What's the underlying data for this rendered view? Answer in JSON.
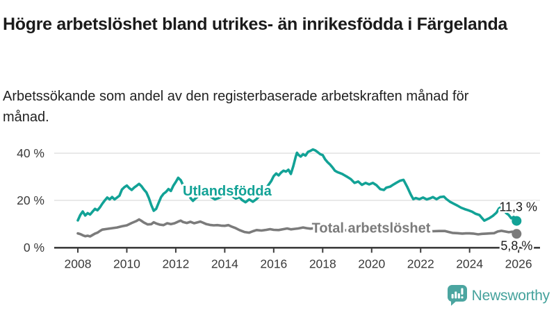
{
  "header": {
    "title": "Högre arbetslöshet bland utrikes- än inrikesfödda i Färgelanda",
    "subtitle": "Arbetssökande som andel av den registerbaserade arbetskraften månad för månad."
  },
  "branding": {
    "name": "Newsworthy",
    "logo_icon": "bar-chart-speech-bubble-icon",
    "color": "#4ba5a0"
  },
  "chart_data": {
    "type": "line",
    "title": "",
    "xlabel": "",
    "ylabel": "",
    "grid": "horizontal",
    "colors": {
      "grid": "#e2e2e2",
      "axis": "#3d3d3d",
      "tick_text": "#3a3a3a"
    },
    "xlim": [
      2007.3,
      2026.9
    ],
    "ylim": [
      0,
      44
    ],
    "x_ticks": [
      {
        "value": 2008,
        "label": "2008"
      },
      {
        "value": 2010,
        "label": "2010"
      },
      {
        "value": 2012,
        "label": "2012"
      },
      {
        "value": 2014,
        "label": "2014"
      },
      {
        "value": 2016,
        "label": "2016"
      },
      {
        "value": 2018,
        "label": "2018"
      },
      {
        "value": 2020,
        "label": "2020"
      },
      {
        "value": 2022,
        "label": "2022"
      },
      {
        "value": 2024,
        "label": "2024"
      },
      {
        "value": 2026,
        "label": "2026"
      }
    ],
    "y_ticks": [
      {
        "value": 0,
        "label": "0 %"
      },
      {
        "value": 20,
        "label": "20 %"
      },
      {
        "value": 40,
        "label": "40 %"
      }
    ],
    "series": [
      {
        "name": "Utlandsfödda",
        "color": "#12a296",
        "end_label": "11,3 %",
        "end_value": 11.3,
        "label_at": [
          2014.1,
          22.1
        ],
        "points": [
          [
            2008.0,
            11.5
          ],
          [
            2008.1,
            13.8
          ],
          [
            2008.2,
            15.3
          ],
          [
            2008.3,
            13.6
          ],
          [
            2008.4,
            14.6
          ],
          [
            2008.5,
            14.0
          ],
          [
            2008.6,
            15.2
          ],
          [
            2008.7,
            16.4
          ],
          [
            2008.8,
            15.8
          ],
          [
            2008.9,
            17.0
          ],
          [
            2009.0,
            18.6
          ],
          [
            2009.1,
            20.0
          ],
          [
            2009.2,
            21.2
          ],
          [
            2009.3,
            20.4
          ],
          [
            2009.4,
            21.4
          ],
          [
            2009.5,
            20.4
          ],
          [
            2009.6,
            21.2
          ],
          [
            2009.7,
            22.0
          ],
          [
            2009.8,
            24.6
          ],
          [
            2009.9,
            25.6
          ],
          [
            2010.0,
            26.3
          ],
          [
            2010.1,
            25.2
          ],
          [
            2010.2,
            24.4
          ],
          [
            2010.3,
            25.4
          ],
          [
            2010.4,
            26.2
          ],
          [
            2010.5,
            27.0
          ],
          [
            2010.6,
            26.0
          ],
          [
            2010.7,
            24.6
          ],
          [
            2010.8,
            23.4
          ],
          [
            2010.9,
            21.0
          ],
          [
            2011.0,
            18.0
          ],
          [
            2011.1,
            15.6
          ],
          [
            2011.2,
            16.4
          ],
          [
            2011.3,
            19.0
          ],
          [
            2011.4,
            21.4
          ],
          [
            2011.5,
            22.8
          ],
          [
            2011.6,
            23.6
          ],
          [
            2011.7,
            24.8
          ],
          [
            2011.8,
            24.0
          ],
          [
            2011.9,
            26.2
          ],
          [
            2012.0,
            27.8
          ],
          [
            2012.1,
            29.6
          ],
          [
            2012.2,
            28.6
          ],
          [
            2012.3,
            26.4
          ],
          [
            2012.4,
            24.6
          ],
          [
            2012.5,
            22.8
          ],
          [
            2012.6,
            21.0
          ],
          [
            2012.7,
            19.8
          ],
          [
            2012.8,
            20.8
          ],
          [
            2012.9,
            21.6
          ],
          [
            2013.0,
            22.4
          ],
          [
            2013.15,
            23.0
          ],
          [
            2013.3,
            22.2
          ],
          [
            2013.45,
            21.4
          ],
          [
            2013.6,
            20.4
          ],
          [
            2013.75,
            21.0
          ],
          [
            2013.9,
            21.8
          ],
          [
            2014.0,
            22.4
          ],
          [
            2014.15,
            22.8
          ],
          [
            2014.3,
            21.8
          ],
          [
            2014.45,
            20.8
          ],
          [
            2014.6,
            21.4
          ],
          [
            2014.7,
            20.2
          ],
          [
            2014.85,
            19.2
          ],
          [
            2015.0,
            20.4
          ],
          [
            2015.15,
            19.4
          ],
          [
            2015.3,
            20.6
          ],
          [
            2015.45,
            22.2
          ],
          [
            2015.6,
            24.0
          ],
          [
            2015.75,
            26.0
          ],
          [
            2015.9,
            28.2
          ],
          [
            2016.0,
            30.3
          ],
          [
            2016.1,
            31.4
          ],
          [
            2016.2,
            30.6
          ],
          [
            2016.3,
            31.8
          ],
          [
            2016.4,
            32.6
          ],
          [
            2016.5,
            32.2
          ],
          [
            2016.6,
            33.0
          ],
          [
            2016.7,
            31.2
          ],
          [
            2016.8,
            34.5
          ],
          [
            2016.9,
            38.5
          ],
          [
            2016.95,
            40.2
          ],
          [
            2017.0,
            39.4
          ],
          [
            2017.1,
            38.6
          ],
          [
            2017.2,
            39.6
          ],
          [
            2017.3,
            39.0
          ],
          [
            2017.4,
            40.6
          ],
          [
            2017.5,
            41.0
          ],
          [
            2017.6,
            41.6
          ],
          [
            2017.7,
            41.2
          ],
          [
            2017.8,
            40.4
          ],
          [
            2017.9,
            39.6
          ],
          [
            2018.0,
            39.2
          ],
          [
            2018.1,
            37.4
          ],
          [
            2018.2,
            36.2
          ],
          [
            2018.3,
            35.2
          ],
          [
            2018.4,
            34.0
          ],
          [
            2018.5,
            32.6
          ],
          [
            2018.6,
            32.0
          ],
          [
            2018.7,
            31.6
          ],
          [
            2018.8,
            31.2
          ],
          [
            2018.9,
            30.6
          ],
          [
            2019.0,
            30.0
          ],
          [
            2019.15,
            29.0
          ],
          [
            2019.3,
            27.4
          ],
          [
            2019.45,
            28.0
          ],
          [
            2019.6,
            26.6
          ],
          [
            2019.75,
            27.4
          ],
          [
            2019.9,
            26.8
          ],
          [
            2020.05,
            27.4
          ],
          [
            2020.2,
            26.4
          ],
          [
            2020.35,
            24.8
          ],
          [
            2020.5,
            24.4
          ],
          [
            2020.6,
            25.4
          ],
          [
            2020.75,
            25.8
          ],
          [
            2020.9,
            26.8
          ],
          [
            2021.0,
            27.4
          ],
          [
            2021.15,
            28.3
          ],
          [
            2021.3,
            28.7
          ],
          [
            2021.45,
            25.8
          ],
          [
            2021.6,
            22.4
          ],
          [
            2021.7,
            20.5
          ],
          [
            2021.8,
            21.0
          ],
          [
            2021.95,
            20.5
          ],
          [
            2022.1,
            21.2
          ],
          [
            2022.25,
            20.4
          ],
          [
            2022.4,
            20.9
          ],
          [
            2022.5,
            21.4
          ],
          [
            2022.65,
            20.5
          ],
          [
            2022.8,
            21.4
          ],
          [
            2022.95,
            21.6
          ],
          [
            2023.05,
            20.6
          ],
          [
            2023.2,
            19.4
          ],
          [
            2023.35,
            18.6
          ],
          [
            2023.5,
            17.8
          ],
          [
            2023.65,
            16.9
          ],
          [
            2023.8,
            16.3
          ],
          [
            2023.95,
            15.8
          ],
          [
            2024.1,
            15.2
          ],
          [
            2024.25,
            14.3
          ],
          [
            2024.4,
            13.8
          ],
          [
            2024.5,
            12.6
          ],
          [
            2024.6,
            11.4
          ],
          [
            2024.7,
            11.9
          ],
          [
            2024.8,
            12.4
          ],
          [
            2024.95,
            13.4
          ],
          [
            2025.1,
            14.8
          ],
          [
            2025.2,
            16.6
          ],
          [
            2025.3,
            17.2
          ],
          [
            2025.4,
            15.8
          ],
          [
            2025.5,
            14.6
          ],
          [
            2025.6,
            13.8
          ],
          [
            2025.7,
            12.4
          ],
          [
            2025.8,
            13.0
          ],
          [
            2025.9,
            11.8
          ],
          [
            2025.92,
            11.3
          ]
        ]
      },
      {
        "name": "Total arbetslöshet",
        "color": "#7b7b7b",
        "end_label": "5,8 %",
        "end_value": 5.8,
        "label_at": [
          2019.98,
          6.3
        ],
        "points": [
          [
            2008.0,
            6.0
          ],
          [
            2008.1,
            5.7
          ],
          [
            2008.2,
            5.2
          ],
          [
            2008.3,
            4.8
          ],
          [
            2008.4,
            5.0
          ],
          [
            2008.5,
            4.7
          ],
          [
            2008.6,
            5.3
          ],
          [
            2008.7,
            5.9
          ],
          [
            2008.8,
            6.3
          ],
          [
            2008.9,
            7.0
          ],
          [
            2009.0,
            7.6
          ],
          [
            2009.2,
            7.9
          ],
          [
            2009.4,
            8.2
          ],
          [
            2009.6,
            8.5
          ],
          [
            2009.8,
            9.0
          ],
          [
            2010.0,
            9.4
          ],
          [
            2010.2,
            10.4
          ],
          [
            2010.4,
            11.3
          ],
          [
            2010.5,
            11.9
          ],
          [
            2010.6,
            11.3
          ],
          [
            2010.7,
            10.6
          ],
          [
            2010.85,
            9.8
          ],
          [
            2011.0,
            9.9
          ],
          [
            2011.1,
            10.7
          ],
          [
            2011.2,
            10.2
          ],
          [
            2011.35,
            9.7
          ],
          [
            2011.5,
            9.5
          ],
          [
            2011.65,
            10.3
          ],
          [
            2011.8,
            9.9
          ],
          [
            2011.95,
            10.3
          ],
          [
            2012.1,
            11.0
          ],
          [
            2012.2,
            11.4
          ],
          [
            2012.3,
            10.8
          ],
          [
            2012.45,
            10.4
          ],
          [
            2012.6,
            10.9
          ],
          [
            2012.75,
            10.3
          ],
          [
            2012.9,
            10.7
          ],
          [
            2013.0,
            11.0
          ],
          [
            2013.1,
            10.6
          ],
          [
            2013.25,
            9.9
          ],
          [
            2013.4,
            9.6
          ],
          [
            2013.55,
            9.4
          ],
          [
            2013.7,
            9.5
          ],
          [
            2013.85,
            9.3
          ],
          [
            2014.0,
            9.2
          ],
          [
            2014.15,
            9.5
          ],
          [
            2014.3,
            8.8
          ],
          [
            2014.45,
            8.2
          ],
          [
            2014.6,
            7.4
          ],
          [
            2014.8,
            6.6
          ],
          [
            2015.0,
            6.3
          ],
          [
            2015.15,
            6.9
          ],
          [
            2015.3,
            7.4
          ],
          [
            2015.5,
            7.2
          ],
          [
            2015.7,
            7.5
          ],
          [
            2015.85,
            7.8
          ],
          [
            2016.0,
            7.5
          ],
          [
            2016.2,
            7.4
          ],
          [
            2016.4,
            7.8
          ],
          [
            2016.55,
            8.1
          ],
          [
            2016.7,
            7.7
          ],
          [
            2016.85,
            7.9
          ],
          [
            2017.0,
            8.1
          ],
          [
            2017.2,
            8.5
          ],
          [
            2017.35,
            8.2
          ],
          [
            2017.5,
            8.0
          ],
          [
            2017.7,
            8.2
          ],
          [
            2017.9,
            8.0
          ],
          [
            2018.1,
            7.8
          ],
          [
            2018.3,
            7.7
          ],
          [
            2018.5,
            7.5
          ],
          [
            2018.75,
            7.4
          ],
          [
            2019.0,
            7.3
          ],
          [
            2019.25,
            7.4
          ],
          [
            2019.5,
            7.5
          ],
          [
            2019.75,
            7.6
          ],
          [
            2020.0,
            7.8
          ],
          [
            2020.25,
            8.5
          ],
          [
            2020.5,
            8.8
          ],
          [
            2020.75,
            8.6
          ],
          [
            2021.0,
            8.3
          ],
          [
            2021.25,
            8.0
          ],
          [
            2021.5,
            7.7
          ],
          [
            2021.75,
            7.4
          ],
          [
            2022.0,
            7.2
          ],
          [
            2022.25,
            7.0
          ],
          [
            2022.5,
            6.9
          ],
          [
            2022.75,
            7.0
          ],
          [
            2023.0,
            7.0
          ],
          [
            2023.15,
            6.6
          ],
          [
            2023.3,
            6.2
          ],
          [
            2023.5,
            6.1
          ],
          [
            2023.7,
            5.9
          ],
          [
            2023.85,
            6.0
          ],
          [
            2024.0,
            6.0
          ],
          [
            2024.15,
            5.9
          ],
          [
            2024.35,
            5.6
          ],
          [
            2024.5,
            5.8
          ],
          [
            2024.7,
            5.9
          ],
          [
            2024.85,
            6.0
          ],
          [
            2025.0,
            6.1
          ],
          [
            2025.15,
            6.8
          ],
          [
            2025.3,
            7.1
          ],
          [
            2025.45,
            6.8
          ],
          [
            2025.6,
            6.5
          ],
          [
            2025.75,
            6.7
          ],
          [
            2025.85,
            6.4
          ],
          [
            2025.92,
            5.8
          ]
        ]
      }
    ]
  }
}
